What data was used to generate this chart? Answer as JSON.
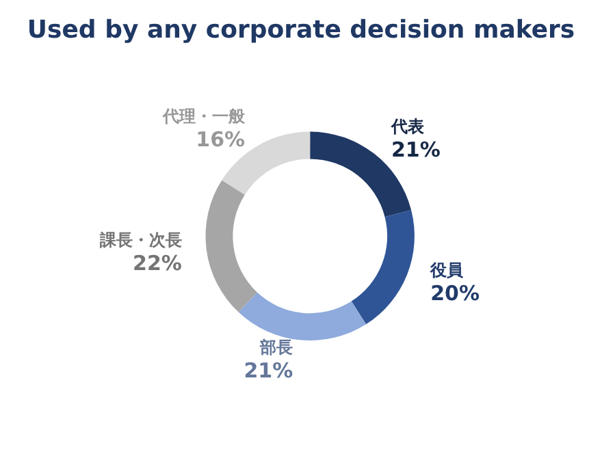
{
  "chart_data": {
    "type": "donut",
    "title": "Used by any corporate decision makers",
    "categories": [
      "代表",
      "役員",
      "部長",
      "課長・次長",
      "代理・一般"
    ],
    "values": [
      21,
      20,
      21,
      22,
      16
    ],
    "colors": [
      "#1f3864",
      "#2f5597",
      "#8faadc",
      "#a6a6a6",
      "#d9d9d9"
    ],
    "value_labels": [
      "21%",
      "20%",
      "21%",
      "22%",
      "16%"
    ]
  }
}
